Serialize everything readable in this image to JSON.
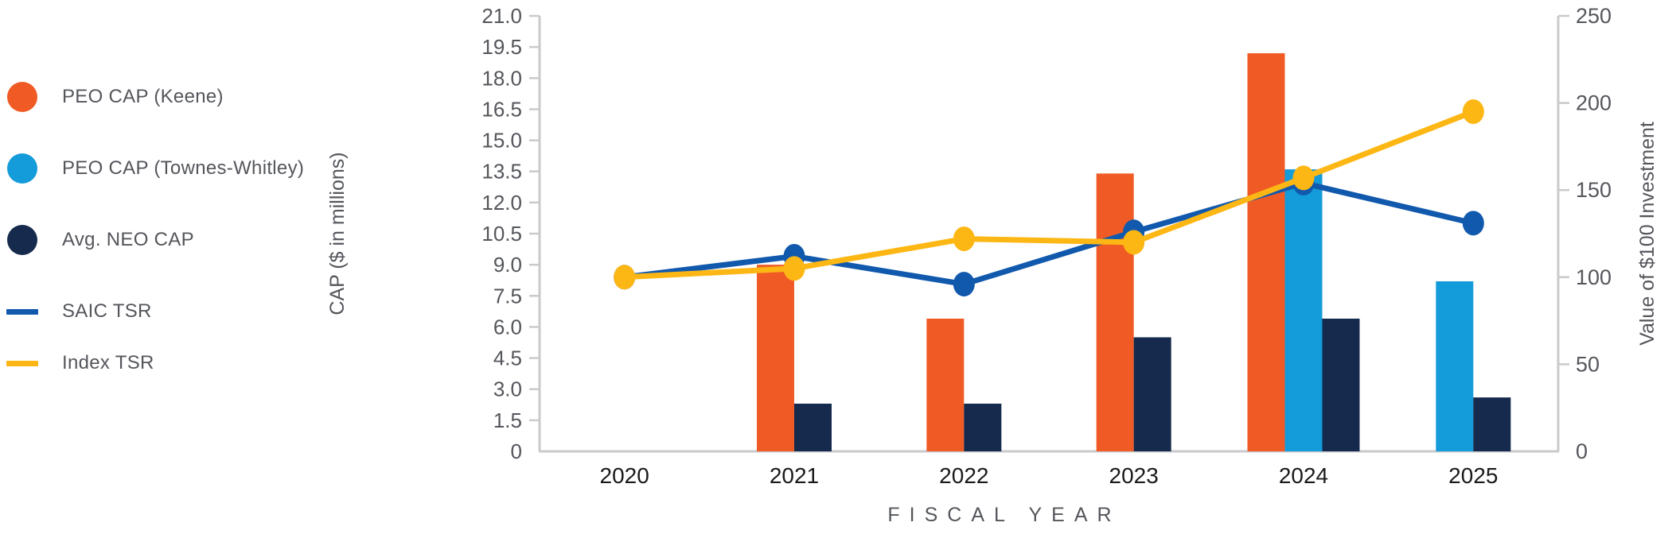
{
  "legend": {
    "items": [
      {
        "label": "PEO CAP (Keene)",
        "swatch": "circle",
        "color": "#F05B25"
      },
      {
        "label": "PEO CAP (Townes-Whitley)",
        "swatch": "circle",
        "color": "#149BD9"
      },
      {
        "label": "Avg. NEO CAP",
        "swatch": "circle",
        "color": "#152A4C"
      },
      {
        "label": "SAIC TSR",
        "swatch": "line",
        "color": "#1159AD"
      },
      {
        "label": "Index TSR",
        "swatch": "line",
        "color": "#FDB714"
      }
    ]
  },
  "chart_data": {
    "type": "combo-bar-line",
    "categories": [
      "2020",
      "2021",
      "2022",
      "2023",
      "2024",
      "2025"
    ],
    "bar_series": [
      {
        "name": "PEO CAP (Keene)",
        "axis": "left",
        "color": "#F05B25",
        "values": [
          null,
          9.0,
          6.4,
          13.4,
          19.2,
          null
        ]
      },
      {
        "name": "PEO CAP (Townes-Whitley)",
        "axis": "left",
        "color": "#149BD9",
        "values": [
          null,
          null,
          null,
          null,
          13.6,
          8.2
        ]
      },
      {
        "name": "Avg. NEO CAP",
        "axis": "left",
        "color": "#152A4C",
        "values": [
          null,
          2.3,
          2.3,
          5.5,
          6.4,
          2.6
        ]
      }
    ],
    "line_series": [
      {
        "name": "SAIC TSR",
        "axis": "right",
        "color": "#1159AD",
        "values": [
          100,
          112,
          96,
          126,
          154,
          131
        ]
      },
      {
        "name": "Index TSR",
        "axis": "right",
        "color": "#FDB714",
        "values": [
          100,
          105,
          122,
          120,
          157,
          195
        ]
      }
    ],
    "left_axis": {
      "title": "CAP ($ in millions)",
      "min": 0,
      "max": 21,
      "step": 1.5,
      "tick_labels": [
        "0",
        "1.5",
        "3.0",
        "4.5",
        "6.0",
        "7.5",
        "9.0",
        "10.5",
        "12.0",
        "13.5",
        "15.0",
        "16.5",
        "18.0",
        "19.5",
        "21.0"
      ]
    },
    "right_axis": {
      "title": "Value of $100 Investment",
      "min": 0,
      "max": 250,
      "step": 50,
      "tick_labels": [
        "0",
        "50",
        "100",
        "150",
        "200",
        "250"
      ]
    },
    "xlabel": "FISCAL YEAR",
    "legend_position": "left",
    "grid": false,
    "colors": {
      "axis_line": "#C9CACC",
      "tick_text": "#54565B",
      "year_text": "#1A1A1A",
      "axis_title": "#54565B"
    }
  }
}
